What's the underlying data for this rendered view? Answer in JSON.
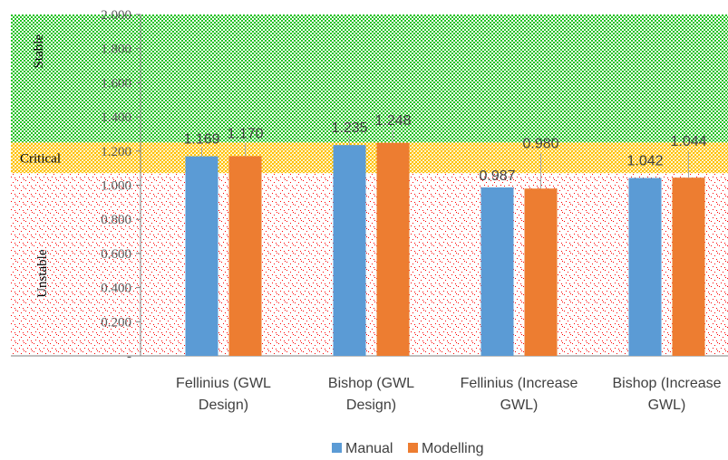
{
  "chart_data": {
    "type": "bar",
    "categories": [
      [
        "Fellinius (GWL",
        "Design)"
      ],
      [
        "Bishop (GWL",
        "Design)"
      ],
      [
        "Fellinius (Increase",
        "GWL)"
      ],
      [
        "Bishop (Increase",
        "GWL)"
      ]
    ],
    "series": [
      {
        "name": "Manual",
        "values": [
          1.169,
          1.235,
          0.987,
          1.042
        ],
        "labels": [
          "1.169",
          "1.235",
          "0.987",
          "1.042"
        ],
        "color": "#5B9BD5"
      },
      {
        "name": "Modelling",
        "values": [
          1.17,
          1.248,
          0.98,
          1.044
        ],
        "labels": [
          "1.170",
          "1.248",
          "0.980",
          "1.044"
        ],
        "color": "#ED7D31"
      }
    ],
    "ylim": [
      0,
      2.0
    ],
    "yticks": [
      "-",
      "0.200",
      "0.400",
      "0.600",
      "0.800",
      "1.000",
      "1.200",
      "1.400",
      "1.600",
      "1.800",
      "2.000"
    ],
    "zones": [
      {
        "label": "Stable",
        "from": 1.25,
        "to": 2.0,
        "color": "#33cc33"
      },
      {
        "label": "Critical",
        "from": 1.07,
        "to": 1.25,
        "color": "#ffc000"
      },
      {
        "label": "Unstable",
        "from": 0,
        "to": 1.07,
        "color": "#ff0000"
      }
    ],
    "legend_position": "bottom",
    "xlabel": "",
    "ylabel": ""
  }
}
